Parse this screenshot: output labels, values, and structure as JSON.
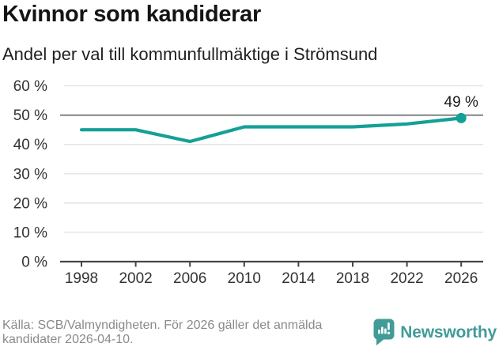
{
  "header": {
    "title": "Kvinnor som kandiderar",
    "subtitle": "Andel per val till kommunfullmäktige i Strömsund"
  },
  "chart_data": {
    "type": "line",
    "title": "Kvinnor som kandiderar",
    "subtitle": "Andel per val till kommunfullmäktige i Strömsund",
    "categories": [
      "1998",
      "2002",
      "2006",
      "2010",
      "2014",
      "2018",
      "2022",
      "2026"
    ],
    "values": [
      45,
      45,
      41,
      46,
      46,
      46,
      47,
      49
    ],
    "unit": "%",
    "end_point_label": "49 %",
    "ylim": [
      0,
      60
    ],
    "ytick_step": 10,
    "ytick_labels": [
      "0 %",
      "10 %",
      "20 %",
      "30 %",
      "40 %",
      "50 %",
      "60 %"
    ],
    "reference_line": 50,
    "grid": true,
    "legend": "none",
    "xlabel": "",
    "ylabel": ""
  },
  "colors": {
    "line_teal": "#14a096",
    "reference_line_gray": "#7a7a7a",
    "axis_dark": "#464646",
    "gridline_gray": "#e3e3e3",
    "axis_text": "#333333",
    "label_dark": "#1a1a1a",
    "muted_text": "#8a8a8a",
    "brand_teal": "#419b99"
  },
  "footer": {
    "source_text": "Källa: SCB/Valmyndigheten. För 2026 gäller det anmälda kandidater 2026-04-10.",
    "brand_name": "Newsworthy",
    "brand_icon": "newsworthy-speech-bubble-bar-chart-icon"
  }
}
